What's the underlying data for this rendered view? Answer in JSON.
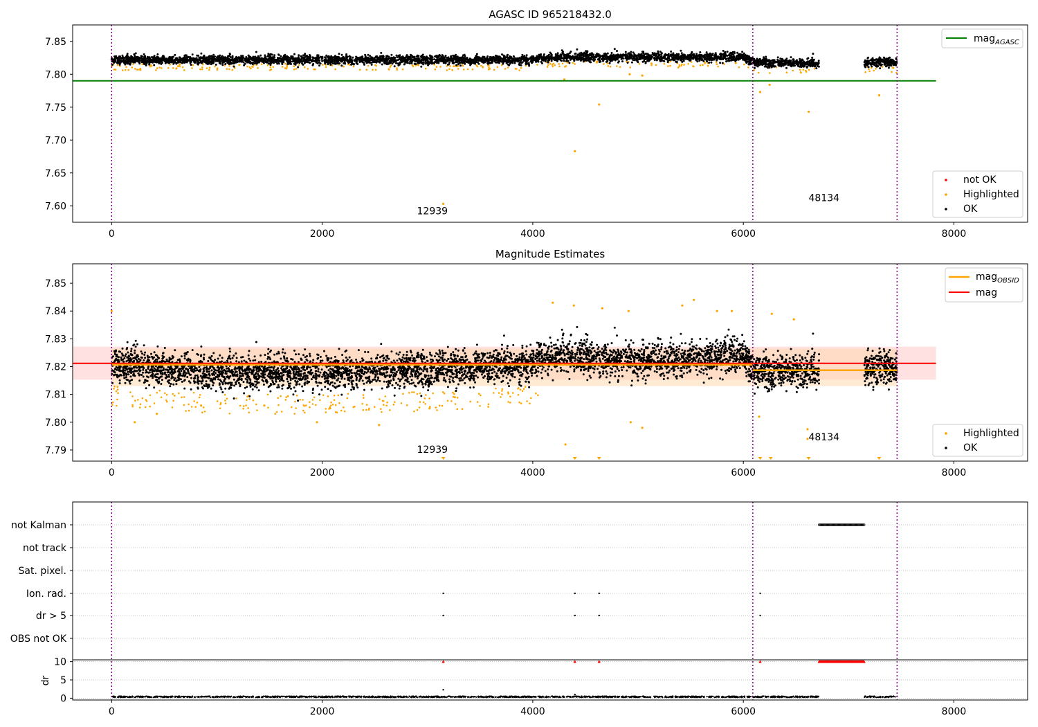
{
  "figure": {
    "top_title": "AGASC ID 965218432.0",
    "middle_title": "Magnitude Estimates"
  },
  "colors": {
    "ok": "#000000",
    "highlighted": "#ffa500",
    "not_ok": "#ff0000",
    "agasc_line": "#008000",
    "mag_line": "#ff0000",
    "obsid_line": "#ffa500",
    "band_red": "#ffc8c8",
    "band_orange": "#ffd8b0",
    "vline": "#800080",
    "grid": "#b0b0b0"
  },
  "chart_data": [
    {
      "type": "scatter",
      "title": "AGASC ID 965218432.0",
      "xlim": [
        -370,
        8700
      ],
      "ylim": [
        7.575,
        7.875
      ],
      "xticks": [
        "0",
        "2000",
        "4000",
        "6000",
        "8000"
      ],
      "yticks": [
        "7.60",
        "7.65",
        "7.70",
        "7.75",
        "7.80",
        "7.85"
      ],
      "hline": {
        "name": "mag_AGASC",
        "y": 7.79,
        "x": [
          -370,
          7830
        ]
      },
      "vlines": [
        0,
        6090,
        7460
      ],
      "annotations": [
        {
          "text": "12939",
          "x": 2900,
          "y": 7.587
        },
        {
          "text": "48134",
          "x": 6620,
          "y": 7.607
        }
      ],
      "segments": [
        [
          0,
          6720
        ],
        [
          7150,
          7460
        ]
      ],
      "ok_level": [
        [
          0,
          7.822
        ],
        [
          4000,
          7.822
        ],
        [
          4200,
          7.826
        ],
        [
          6000,
          7.826
        ],
        [
          6100,
          7.818
        ],
        [
          6720,
          7.817
        ],
        [
          7150,
          7.818
        ],
        [
          7460,
          7.818
        ]
      ],
      "ok_spread": 0.006,
      "highlighted_outliers": [
        [
          3150,
          7.603
        ],
        [
          4400,
          7.683
        ],
        [
          4630,
          7.754
        ],
        [
          6620,
          7.743
        ],
        [
          7290,
          7.768
        ],
        [
          6160,
          7.773
        ],
        [
          6250,
          7.784
        ],
        [
          4300,
          7.792
        ],
        [
          5040,
          7.798
        ],
        [
          4920,
          7.8
        ]
      ],
      "legend_top": {
        "entries": [
          {
            "label": "mag",
            "subscript": "AGASC"
          }
        ]
      },
      "legend_bottom": {
        "entries": [
          "not OK",
          "Highlighted",
          "OK"
        ]
      }
    },
    {
      "type": "scatter",
      "title": "Magnitude Estimates",
      "xlim": [
        -370,
        8700
      ],
      "ylim": [
        7.786,
        7.857
      ],
      "xticks": [
        "0",
        "2000",
        "4000",
        "6000",
        "8000"
      ],
      "yticks": [
        "7.79",
        "7.80",
        "7.81",
        "7.82",
        "7.83",
        "7.84",
        "7.85"
      ],
      "mag_line": {
        "name": "mag",
        "y": 7.8212,
        "x": [
          -370,
          7830
        ]
      },
      "mag_band": {
        "y": [
          7.8153,
          7.8272
        ],
        "x": [
          -370,
          7830
        ]
      },
      "obsid_line": [
        {
          "x": [
            0,
            6090
          ],
          "y": 7.8207
        },
        {
          "x": [
            6090,
            7460
          ],
          "y": 7.8187
        }
      ],
      "obsid_band": {
        "x": [
          0,
          7460
        ],
        "y": [
          7.813,
          7.8265
        ]
      },
      "vlines": [
        0,
        6090,
        7460
      ],
      "annotations": [
        {
          "text": "12939",
          "x": 2900,
          "y": 7.789
        },
        {
          "text": "48134",
          "x": 6620,
          "y": 7.7935
        }
      ],
      "segments": [
        [
          0,
          6720
        ],
        [
          7150,
          7460
        ]
      ],
      "ok_level": [
        [
          0,
          7.821
        ],
        [
          1000,
          7.818
        ],
        [
          2000,
          7.818
        ],
        [
          3000,
          7.819
        ],
        [
          4000,
          7.821
        ],
        [
          4200,
          7.824
        ],
        [
          5000,
          7.822
        ],
        [
          6000,
          7.824
        ],
        [
          6100,
          7.818
        ],
        [
          6720,
          7.819
        ],
        [
          7150,
          7.82
        ],
        [
          7460,
          7.819
        ]
      ],
      "ok_spread": 0.0055,
      "highlighted_points": [
        [
          220,
          7.8
        ],
        [
          430,
          7.803
        ],
        [
          850,
          7.806
        ],
        [
          1450,
          7.806
        ],
        [
          1950,
          7.8
        ],
        [
          2540,
          7.799
        ],
        [
          3020,
          7.805
        ],
        [
          4310,
          7.792
        ],
        [
          4930,
          7.8
        ],
        [
          5040,
          7.798
        ],
        [
          6150,
          7.802
        ],
        [
          6610,
          7.794
        ],
        [
          6610,
          7.7975
        ],
        [
          4190,
          7.843
        ],
        [
          4390,
          7.842
        ],
        [
          4660,
          7.841
        ],
        [
          4910,
          7.84
        ],
        [
          5420,
          7.842
        ],
        [
          5530,
          7.844
        ],
        [
          5750,
          7.84
        ],
        [
          5890,
          7.84
        ],
        [
          6270,
          7.839
        ],
        [
          6480,
          7.837
        ],
        [
          0,
          7.84
        ],
        [
          3260,
          7.809
        ]
      ],
      "clipped_markers": [
        3150,
        4400,
        4630,
        6160,
        6260,
        6620,
        7290
      ],
      "legend_top": {
        "entries": [
          {
            "label": "mag",
            "subscript": "OBSID"
          },
          {
            "label": "mag",
            "subscript": ""
          }
        ]
      },
      "legend_bottom": {
        "entries": [
          "Highlighted",
          "OK"
        ]
      }
    },
    {
      "type": "scatter",
      "title": "",
      "xlim": [
        -370,
        8700
      ],
      "xticks": [
        "0",
        "2000",
        "4000",
        "6000",
        "8000"
      ],
      "flag_rows": [
        "not Kalman",
        "not track",
        "Sat. pixel.",
        "Ion. rad.",
        "dr > 5",
        "OBS not OK"
      ],
      "flag_points": {
        "not Kalman": {
          "range": [
            6720,
            7150
          ]
        },
        "Ion. rad.": {
          "x": [
            3150,
            4400,
            4630,
            6160
          ]
        },
        "dr > 5": {
          "x": [
            3150,
            4400,
            4630,
            6160
          ]
        }
      },
      "vlines": [
        0,
        6090,
        7460
      ],
      "dr_ylabel": "dr",
      "dr_yticks": [
        "0",
        "5",
        "10"
      ],
      "dr_ylim": [
        -0.5,
        10.5
      ],
      "dr_capped": {
        "y": 10,
        "x": [
          3150,
          4400,
          4630,
          6160
        ],
        "range": [
          6720,
          7150
        ]
      },
      "dr_outliers": [
        [
          3150,
          2.3
        ],
        [
          4400,
          1.0
        ]
      ],
      "segments": [
        [
          0,
          6720
        ],
        [
          7150,
          7460
        ]
      ],
      "dr_baseline": 0.2
    }
  ]
}
